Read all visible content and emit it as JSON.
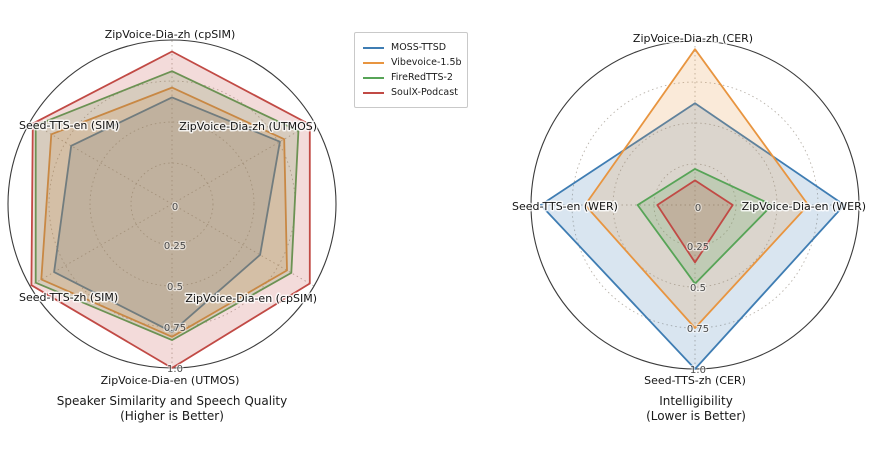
{
  "legend": {
    "entries": [
      {
        "label": "MOSS-TTSD",
        "color": "#3f7db3"
      },
      {
        "label": "Vibevoice-1.5b",
        "color": "#e89540"
      },
      {
        "label": "FireRedTTS-2",
        "color": "#57a457"
      },
      {
        "label": "SoulX-Podcast",
        "color": "#c14a45"
      }
    ]
  },
  "chart_data": [
    {
      "type": "radar",
      "title": "Speaker Similarity and Speech Quality",
      "subtitle": "(Higher is Better)",
      "axes": [
        "ZipVoice-Dia-zh (cpSIM)",
        "ZipVoice-Dia-zh (UTMOS)",
        "ZipVoice-Dia-en (cpSIM)",
        "ZipVoice-Dia-en (UTMOS)",
        "Seed-TTS-zh (SIM)",
        "Seed-TTS-en (SIM)"
      ],
      "start_angle_deg": 90,
      "direction": "clockwise",
      "r_max": 1.0,
      "r_tick_values": [
        0,
        0.25,
        0.5,
        0.75,
        1.0
      ],
      "r_tick_labels": [
        "0",
        "0.25",
        "0.5",
        "0.75",
        "1.0"
      ],
      "grid": "dotted circles + dotted spokes, solid outer circle",
      "series": [
        {
          "name": "MOSS-TTSD",
          "color": "#3f7db3",
          "values": [
            0.65,
            0.76,
            0.62,
            0.78,
            0.83,
            0.71
          ]
        },
        {
          "name": "Vibevoice-1.5b",
          "color": "#e89540",
          "values": [
            0.71,
            0.79,
            0.81,
            0.81,
            0.92,
            0.85
          ]
        },
        {
          "name": "FireRedTTS-2",
          "color": "#57a457",
          "values": [
            0.81,
            0.89,
            0.84,
            0.83,
            0.96,
            0.96
          ]
        },
        {
          "name": "SoulX-Podcast",
          "color": "#c14a45",
          "values": [
            0.93,
            0.97,
            0.97,
            1.0,
            0.99,
            0.98
          ]
        }
      ]
    },
    {
      "type": "radar",
      "title": "Intelligibility",
      "subtitle": "(Lower is Better)",
      "axes": [
        "ZipVoice-Dia-zh (CER)",
        "ZipVoice-Dia-en (WER)",
        "Seed-TTS-zh (CER)",
        "Seed-TTS-en (WER)"
      ],
      "start_angle_deg": 90,
      "direction": "clockwise",
      "r_max": 1.0,
      "r_tick_values": [
        0,
        0.25,
        0.5,
        0.75,
        1.0
      ],
      "r_tick_labels": [
        "0",
        "0.25",
        "0.5",
        "0.75",
        "1.0"
      ],
      "grid": "dotted circles + dotted spokes, solid outer circle",
      "series": [
        {
          "name": "MOSS-TTSD",
          "color": "#3f7db3",
          "values": [
            0.62,
            0.91,
            1.0,
            0.94
          ]
        },
        {
          "name": "Vibevoice-1.5b",
          "color": "#e89540",
          "values": [
            0.95,
            0.69,
            0.75,
            0.67
          ]
        },
        {
          "name": "FireRedTTS-2",
          "color": "#57a457",
          "values": [
            0.22,
            0.47,
            0.48,
            0.35
          ]
        },
        {
          "name": "SoulX-Podcast",
          "color": "#c14a45",
          "values": [
            0.15,
            0.23,
            0.35,
            0.23
          ]
        }
      ]
    }
  ]
}
